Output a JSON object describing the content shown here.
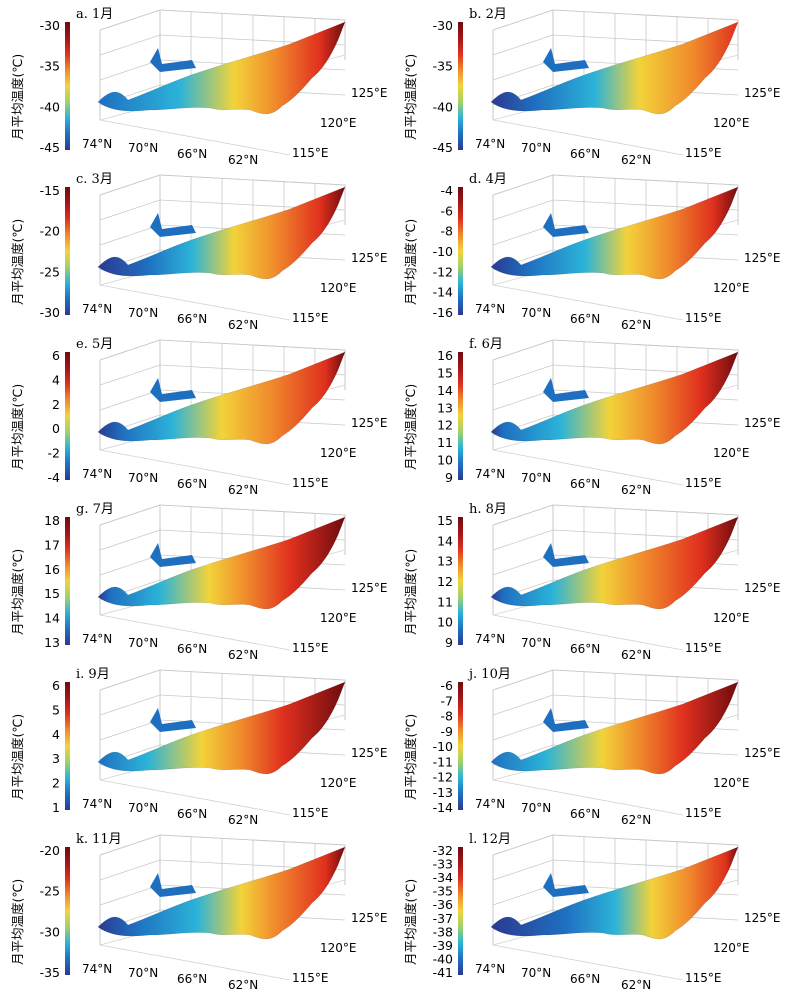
{
  "chart_data": [
    {
      "type": "surface",
      "title": "a. 1月",
      "ylabel": "月平均温度(℃)",
      "zlim": [
        -45,
        -30
      ],
      "colorbar_ticks": [
        "-30",
        "-35",
        "-40",
        "-45"
      ],
      "lat_ticks": [
        "74°N",
        "70°N",
        "66°N",
        "62°N"
      ],
      "lon_ticks": [
        "125°E",
        "120°E",
        "115°E"
      ],
      "temp_north": -43,
      "temp_south": -30,
      "stops": [
        0,
        0.33,
        0.55,
        0.72,
        0.9
      ]
    },
    {
      "type": "surface",
      "title": "b. 2月",
      "ylabel": "月平均温度(℃)",
      "zlim": [
        -45,
        -30
      ],
      "colorbar_ticks": [
        "-30",
        "-35",
        "-40",
        "-45"
      ],
      "lat_ticks": [
        "74°N",
        "70°N",
        "66°N",
        "62°N"
      ],
      "lon_ticks": [
        "125°E",
        "120°E",
        "115°E"
      ],
      "temp_north": -40,
      "temp_south": -30,
      "stops": [
        0.18,
        0.42,
        0.6,
        0.82,
        1
      ]
    },
    {
      "type": "surface",
      "title": "c. 3月",
      "ylabel": "月平均温度(℃)",
      "zlim": [
        -30,
        -15
      ],
      "colorbar_ticks": [
        "-15",
        "-20",
        "-25",
        "-30"
      ],
      "lat_ticks": [
        "74°N",
        "70°N",
        "66°N",
        "62°N"
      ],
      "lon_ticks": [
        "125°E",
        "120°E",
        "115°E"
      ],
      "temp_north": -27,
      "temp_south": -16,
      "stops": [
        0.2,
        0.38,
        0.55,
        0.72,
        0.9
      ]
    },
    {
      "type": "surface",
      "title": "d. 4月",
      "ylabel": "月平均温度(℃)",
      "zlim": [
        -16,
        -4
      ],
      "colorbar_ticks": [
        "-4",
        "-6",
        "-8",
        "-10",
        "-12",
        "-14",
        "-16"
      ],
      "lat_ticks": [
        "74°N",
        "70°N",
        "66°N",
        "62°N"
      ],
      "lon_ticks": [
        "125°E",
        "120°E",
        "115°E"
      ],
      "temp_north": -14,
      "temp_south": -5,
      "stops": [
        0.15,
        0.38,
        0.55,
        0.72,
        0.9
      ]
    },
    {
      "type": "surface",
      "title": "e. 5月",
      "ylabel": "月平均温度(℃)",
      "zlim": [
        -4,
        6
      ],
      "colorbar_ticks": [
        "6",
        "4",
        "2",
        "0",
        "-2",
        "-4"
      ],
      "lat_ticks": [
        "74°N",
        "70°N",
        "66°N",
        "62°N"
      ],
      "lon_ticks": [
        "125°E",
        "120°E",
        "115°E"
      ],
      "temp_north": -3,
      "temp_south": 6,
      "stops": [
        0.1,
        0.3,
        0.5,
        0.7,
        0.92
      ]
    },
    {
      "type": "surface",
      "title": "f. 6月",
      "ylabel": "月平均温度(℃)",
      "zlim": [
        9,
        16
      ],
      "colorbar_ticks": [
        "16",
        "15",
        "14",
        "13",
        "12",
        "11",
        "10",
        "9"
      ],
      "lat_ticks": [
        "74°N",
        "70°N",
        "66°N",
        "62°N"
      ],
      "lon_ticks": [
        "125°E",
        "120°E",
        "115°E"
      ],
      "temp_north": 9.5,
      "temp_south": 15.5,
      "stops": [
        0.05,
        0.28,
        0.48,
        0.66,
        0.85
      ]
    },
    {
      "type": "surface",
      "title": "g. 7月",
      "ylabel": "月平均温度(℃)",
      "zlim": [
        13,
        18
      ],
      "colorbar_ticks": [
        "18",
        "17",
        "16",
        "15",
        "14",
        "13"
      ],
      "lat_ticks": [
        "74°N",
        "70°N",
        "66°N",
        "62°N"
      ],
      "lon_ticks": [
        "125°E",
        "120°E",
        "115°E"
      ],
      "temp_north": 13.5,
      "temp_south": 17.5,
      "stops": [
        0.05,
        0.25,
        0.45,
        0.6,
        0.78
      ]
    },
    {
      "type": "surface",
      "title": "h. 8月",
      "ylabel": "月平均温度(℃)",
      "zlim": [
        9,
        15
      ],
      "colorbar_ticks": [
        "15",
        "14",
        "13",
        "12",
        "11",
        "10",
        "9"
      ],
      "lat_ticks": [
        "74°N",
        "70°N",
        "66°N",
        "62°N"
      ],
      "lon_ticks": [
        "125°E",
        "120°E",
        "115°E"
      ],
      "temp_north": 9.5,
      "temp_south": 14.5,
      "stops": [
        0.05,
        0.25,
        0.45,
        0.62,
        0.85
      ]
    },
    {
      "type": "surface",
      "title": "i. 9月",
      "ylabel": "月平均温度(℃)",
      "zlim": [
        1,
        6
      ],
      "colorbar_ticks": [
        "6",
        "5",
        "4",
        "3",
        "2",
        "1"
      ],
      "lat_ticks": [
        "74°N",
        "70°N",
        "66°N",
        "62°N"
      ],
      "lon_ticks": [
        "125°E",
        "120°E",
        "115°E"
      ],
      "temp_north": 1.5,
      "temp_south": 5.5,
      "stops": [
        0,
        0.2,
        0.42,
        0.58,
        0.75
      ]
    },
    {
      "type": "surface",
      "title": "j. 10月",
      "ylabel": "月平均温度(℃)",
      "zlim": [
        -14,
        -6
      ],
      "colorbar_ticks": [
        "-6",
        "-7",
        "-8",
        "-9",
        "-10",
        "-11",
        "-12",
        "-13",
        "-14"
      ],
      "lat_ticks": [
        "74°N",
        "70°N",
        "66°N",
        "62°N"
      ],
      "lon_ticks": [
        "125°E",
        "120°E",
        "115°E"
      ],
      "temp_north": -13,
      "temp_south": -7,
      "stops": [
        0,
        0.22,
        0.45,
        0.6,
        0.78
      ]
    },
    {
      "type": "surface",
      "title": "k. 11月",
      "ylabel": "月平均温度(℃)",
      "zlim": [
        -35,
        -20
      ],
      "colorbar_ticks": [
        "-20",
        "-25",
        "-30",
        "-35"
      ],
      "lat_ticks": [
        "74°N",
        "70°N",
        "66°N",
        "62°N"
      ],
      "lon_ticks": [
        "125°E",
        "120°E",
        "115°E"
      ],
      "temp_north": -32,
      "temp_south": -21,
      "stops": [
        0.15,
        0.4,
        0.58,
        0.72,
        0.92
      ]
    },
    {
      "type": "surface",
      "title": "l. 12月",
      "ylabel": "月平均温度(℃)",
      "zlim": [
        -41,
        -32
      ],
      "colorbar_ticks": [
        "-32",
        "-33",
        "-34",
        "-35",
        "-36",
        "-37",
        "-38",
        "-39",
        "-40",
        "-41"
      ],
      "lat_ticks": [
        "74°N",
        "70°N",
        "66°N",
        "62°N"
      ],
      "lon_ticks": [
        "125°E",
        "120°E",
        "115°E"
      ],
      "temp_north": -40,
      "temp_south": -33,
      "stops": [
        0.3,
        0.5,
        0.65,
        0.8,
        0.95
      ]
    }
  ]
}
